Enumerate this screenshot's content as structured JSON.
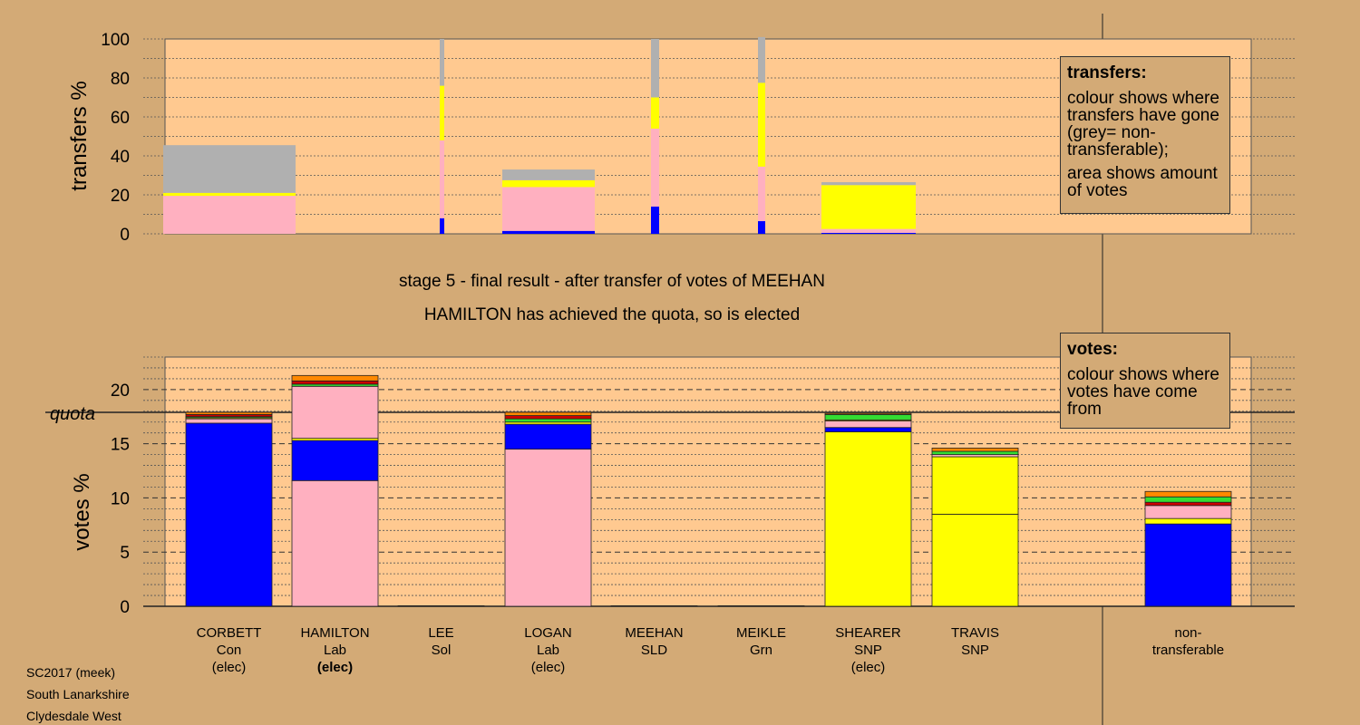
{
  "header": {
    "line1": "stage 5 - final result - after transfer of votes of MEEHAN",
    "line2": "HAMILTON has achieved the quota, so is elected"
  },
  "legend_transfers": {
    "title": "transfers:",
    "p1": "colour shows where transfers have gone (grey= non-transferable);",
    "p2": "area shows amount of votes"
  },
  "legend_votes": {
    "title": "votes:",
    "p1": "colour shows where votes have come from"
  },
  "footer": {
    "line1": "SC2017 (meek)",
    "line2": "South Lanarkshire",
    "line3": "Clydesdale West"
  },
  "colors": {
    "background": "#d3aa76",
    "plot_bg": "#ffc990",
    "Con": "#0000ff",
    "Lab": "#ffb0c0",
    "SNP": "#ffff00",
    "Grn": "#33dd33",
    "SLD": "#ff8800",
    "Sol": "#cc0000",
    "nontransferable": "#b0b0b0"
  },
  "chart_data": [
    {
      "type": "bar",
      "name": "transfers",
      "ylabel": "transfers %",
      "ylim": [
        0,
        100
      ],
      "yticks": [
        0,
        20,
        40,
        60,
        80,
        100
      ],
      "grid": true,
      "note": "colour = destination of transferred votes; width proportional to amount transferred",
      "bars": [
        {
          "candidate": "CORBETT",
          "segments": [
            {
              "party": "Lab",
              "value": 19.5
            },
            {
              "party": "SNP",
              "value": 1.5
            },
            {
              "party": "nontransferable",
              "value": 24.5
            }
          ]
        },
        {
          "candidate": "LEE",
          "segments": [
            {
              "party": "Con",
              "value": 8
            },
            {
              "party": "Lab",
              "value": 40
            },
            {
              "party": "SNP",
              "value": 28
            },
            {
              "party": "nontransferable",
              "value": 24
            }
          ]
        },
        {
          "candidate": "LOGAN",
          "segments": [
            {
              "party": "Con",
              "value": 1.5
            },
            {
              "party": "Lab",
              "value": 22.5
            },
            {
              "party": "SNP",
              "value": 3.5
            },
            {
              "party": "nontransferable",
              "value": 5.5
            }
          ]
        },
        {
          "candidate": "MEEHAN",
          "segments": [
            {
              "party": "Con",
              "value": 14
            },
            {
              "party": "Lab",
              "value": 40
            },
            {
              "party": "SNP",
              "value": 16
            },
            {
              "party": "nontransferable",
              "value": 30
            }
          ]
        },
        {
          "candidate": "MEIKLE",
          "segments": [
            {
              "party": "Con",
              "value": 6.5
            },
            {
              "party": "Lab",
              "value": 28
            },
            {
              "party": "SNP",
              "value": 43
            },
            {
              "party": "nontransferable",
              "value": 23.5
            }
          ]
        },
        {
          "candidate": "SHEARER",
          "segments": [
            {
              "party": "Con",
              "value": 0.5
            },
            {
              "party": "Lab",
              "value": 2
            },
            {
              "party": "SNP",
              "value": 22.5
            },
            {
              "party": "nontransferable",
              "value": 1.5
            }
          ]
        }
      ]
    },
    {
      "type": "bar",
      "name": "votes",
      "ylabel": "votes %",
      "ylim": [
        0,
        23
      ],
      "yticks": [
        0,
        5,
        10,
        15,
        20
      ],
      "quota": 17.9,
      "quota_label": "quota",
      "grid": true,
      "categories": [
        {
          "name": "CORBETT",
          "party": "Con",
          "status": "(elec)",
          "segments": [
            {
              "party": "Con",
              "value": 16.9
            },
            {
              "party": "Lab",
              "value": 0.4
            },
            {
              "party": "SNP",
              "value": 0.1
            },
            {
              "party": "Grn",
              "value": 0.1
            },
            {
              "party": "Sol",
              "value": 0.2
            },
            {
              "party": "SLD",
              "value": 0.2
            }
          ]
        },
        {
          "name": "HAMILTON",
          "party": "Lab",
          "status": "(elec)",
          "status_bold": true,
          "segments": [
            {
              "party": "Lab",
              "value": 11.6
            },
            {
              "party": "Con",
              "value": 3.7
            },
            {
              "party": "SNP",
              "value": 0.2
            },
            {
              "party": "Lab",
              "value": 4.8
            },
            {
              "party": "Grn",
              "value": 0.2
            },
            {
              "party": "Sol",
              "value": 0.3
            },
            {
              "party": "SLD",
              "value": 0.5
            }
          ]
        },
        {
          "name": "LEE",
          "party": "Sol",
          "status": "",
          "segments": [
            {
              "party": "Sol",
              "value": 0.05
            }
          ]
        },
        {
          "name": "LOGAN",
          "party": "Lab",
          "status": "(elec)",
          "segments": [
            {
              "party": "Lab",
              "value": 14.5
            },
            {
              "party": "Con",
              "value": 2.3
            },
            {
              "party": "SNP",
              "value": 0.2
            },
            {
              "party": "Grn",
              "value": 0.3
            },
            {
              "party": "Sol",
              "value": 0.3
            },
            {
              "party": "SLD",
              "value": 0.3
            }
          ]
        },
        {
          "name": "MEEHAN",
          "party": "SLD",
          "status": "",
          "segments": [
            {
              "party": "SLD",
              "value": 0.05
            }
          ]
        },
        {
          "name": "MEIKLE",
          "party": "Grn",
          "status": "",
          "segments": [
            {
              "party": "Grn",
              "value": 0.05
            }
          ]
        },
        {
          "name": "SHEARER",
          "party": "SNP",
          "status": "(elec)",
          "segments": [
            {
              "party": "SNP",
              "value": 16.1
            },
            {
              "party": "Con",
              "value": 0.4
            },
            {
              "party": "Lab",
              "value": 0.6
            },
            {
              "party": "SNP",
              "value": 0.1
            },
            {
              "party": "Grn",
              "value": 0.5
            },
            {
              "party": "SLD",
              "value": 0.1
            }
          ]
        },
        {
          "name": "TRAVIS",
          "party": "SNP",
          "status": "",
          "segments": [
            {
              "party": "SNP",
              "value": 8.5
            },
            {
              "party": "SNP",
              "value": 5.3
            },
            {
              "party": "Lab",
              "value": 0.2
            },
            {
              "party": "Grn",
              "value": 0.3
            },
            {
              "party": "SLD",
              "value": 0.3
            }
          ]
        },
        {
          "name": "non-",
          "party": "transferable",
          "status": "",
          "segments": [
            {
              "party": "Con",
              "value": 7.6
            },
            {
              "party": "SNP",
              "value": 0.5
            },
            {
              "party": "Lab",
              "value": 1.2
            },
            {
              "party": "Sol",
              "value": 0.3
            },
            {
              "party": "Grn",
              "value": 0.5
            },
            {
              "party": "SLD",
              "value": 0.5
            }
          ]
        }
      ]
    }
  ]
}
